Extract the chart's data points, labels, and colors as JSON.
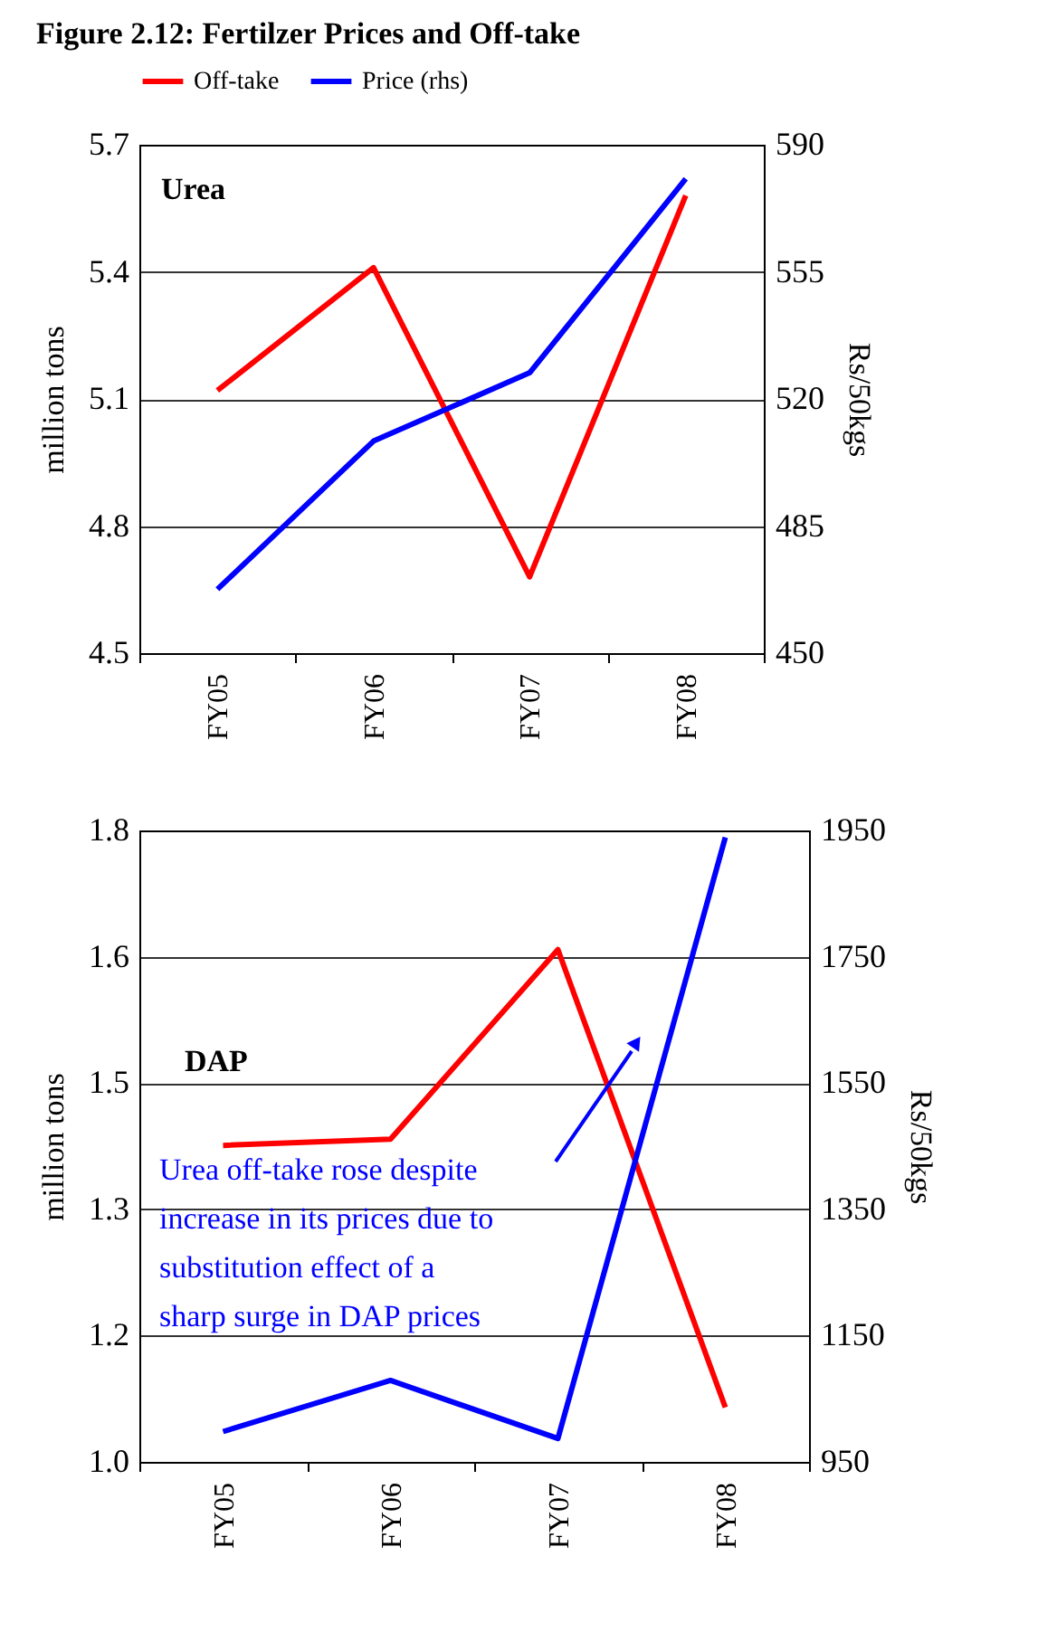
{
  "chart_data": [
    {
      "type": "line",
      "title": "Figure 2.12: Fertilzer Prices and Off-take",
      "categories": [
        "FY05",
        "FY06",
        "FY07",
        "FY08"
      ],
      "series": [
        {
          "name": "Off-take",
          "color": "#ff0000",
          "values": [
            5.12,
            5.41,
            4.68,
            5.58
          ]
        },
        {
          "name": "Price (rhs)",
          "color": "#0000ff",
          "axis": "y2",
          "values": [
            467.6,
            508.4,
            527.2,
            580.6
          ]
        }
      ],
      "ylabel": "million tons",
      "y2label": "Rs/50kgs",
      "ylim": [
        4.5,
        5.7
      ],
      "yticks": [
        4.5,
        4.8,
        5.1,
        5.4,
        5.7
      ],
      "y2lim": [
        450,
        590
      ],
      "y2ticks": [
        450,
        485,
        520,
        555,
        590
      ],
      "grid": "y",
      "legend": "top left",
      "annotations": [
        "Urea"
      ]
    },
    {
      "type": "line",
      "categories": [
        "FY05",
        "FY06",
        "FY07",
        "FY08"
      ],
      "series": [
        {
          "name": "Off-take",
          "color": "#ff0000",
          "values": [
            1.401,
            1.409,
            1.649,
            1.069
          ]
        },
        {
          "name": "Price (rhs)",
          "color": "#0000ff",
          "axis": "y2",
          "values": [
            998,
            1079,
            987,
            1939
          ]
        }
      ],
      "ylabel": "million tons",
      "y2label": "Rs/50kgs",
      "ylim": [
        1.0,
        1.8
      ],
      "yticks": [
        {
          "value": 1.0,
          "label": "1.0"
        },
        {
          "value": 1.16,
          "label": "1.2"
        },
        {
          "value": 1.32,
          "label": "1.3"
        },
        {
          "value": 1.48,
          "label": "1.5"
        },
        {
          "value": 1.64,
          "label": "1.6"
        },
        {
          "value": 1.8,
          "label": "1.8"
        }
      ],
      "y2lim": [
        950,
        1950
      ],
      "y2ticks": [
        950,
        1150,
        1350,
        1550,
        1750,
        1950
      ],
      "grid": "y",
      "annotations": [
        "DAP",
        "Urea off-take rose despite increase in its prices due to substitution effect of a sharp surge in DAP prices"
      ]
    }
  ]
}
